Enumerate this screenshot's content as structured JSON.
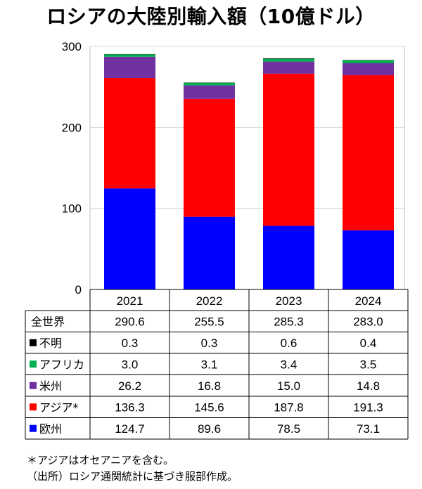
{
  "title": "ロシアの大陸別輸入額（10億ドル）",
  "notes": [
    "＊アジアはオセアニアを含む。",
    "（出所）ロシア通関統計に基づき服部作成。"
  ],
  "colors": {
    "欧州": "#0000ff",
    "アジア": "#ff0000",
    "米州": "#7030a0",
    "アフリカ": "#00b050",
    "不明": "#000000"
  },
  "chart_data": {
    "type": "bar",
    "stacked": true,
    "title": "ロシアの大陸別輸入額（10億ドル）",
    "categories": [
      "2021",
      "2022",
      "2023",
      "2024"
    ],
    "y_ticks": [
      "0",
      "100",
      "200",
      "300"
    ],
    "ylim": [
      0,
      300
    ],
    "grid": true,
    "series": [
      {
        "name": "欧州",
        "label": "欧州",
        "values": [
          124.7,
          89.6,
          78.5,
          73.1
        ],
        "values_text": [
          "124.7",
          "89.6",
          "78.5",
          "73.1"
        ]
      },
      {
        "name": "アジア",
        "label": "アジア*",
        "values": [
          136.3,
          145.6,
          187.8,
          191.3
        ],
        "values_text": [
          "136.3",
          "145.6",
          "187.8",
          "191.3"
        ]
      },
      {
        "name": "米州",
        "label": "米州",
        "values": [
          26.2,
          16.8,
          15.0,
          14.8
        ],
        "values_text": [
          "26.2",
          "16.8",
          "15.0",
          "14.8"
        ]
      },
      {
        "name": "アフリカ",
        "label": "アフリカ",
        "values": [
          3.0,
          3.1,
          3.4,
          3.5
        ],
        "values_text": [
          "3.0",
          "3.1",
          "3.4",
          "3.5"
        ]
      },
      {
        "name": "不明",
        "label": "不明",
        "values": [
          0.3,
          0.3,
          0.6,
          0.4
        ],
        "values_text": [
          "0.3",
          "0.3",
          "0.6",
          "0.4"
        ]
      }
    ],
    "total": {
      "label": "全世界",
      "values": [
        290.6,
        255.5,
        285.3,
        283.0
      ],
      "values_text": [
        "290.6",
        "255.5",
        "285.3",
        "283.0"
      ]
    },
    "table_row_order": [
      "total",
      "不明",
      "アフリカ",
      "米州",
      "アジア",
      "欧州"
    ]
  }
}
